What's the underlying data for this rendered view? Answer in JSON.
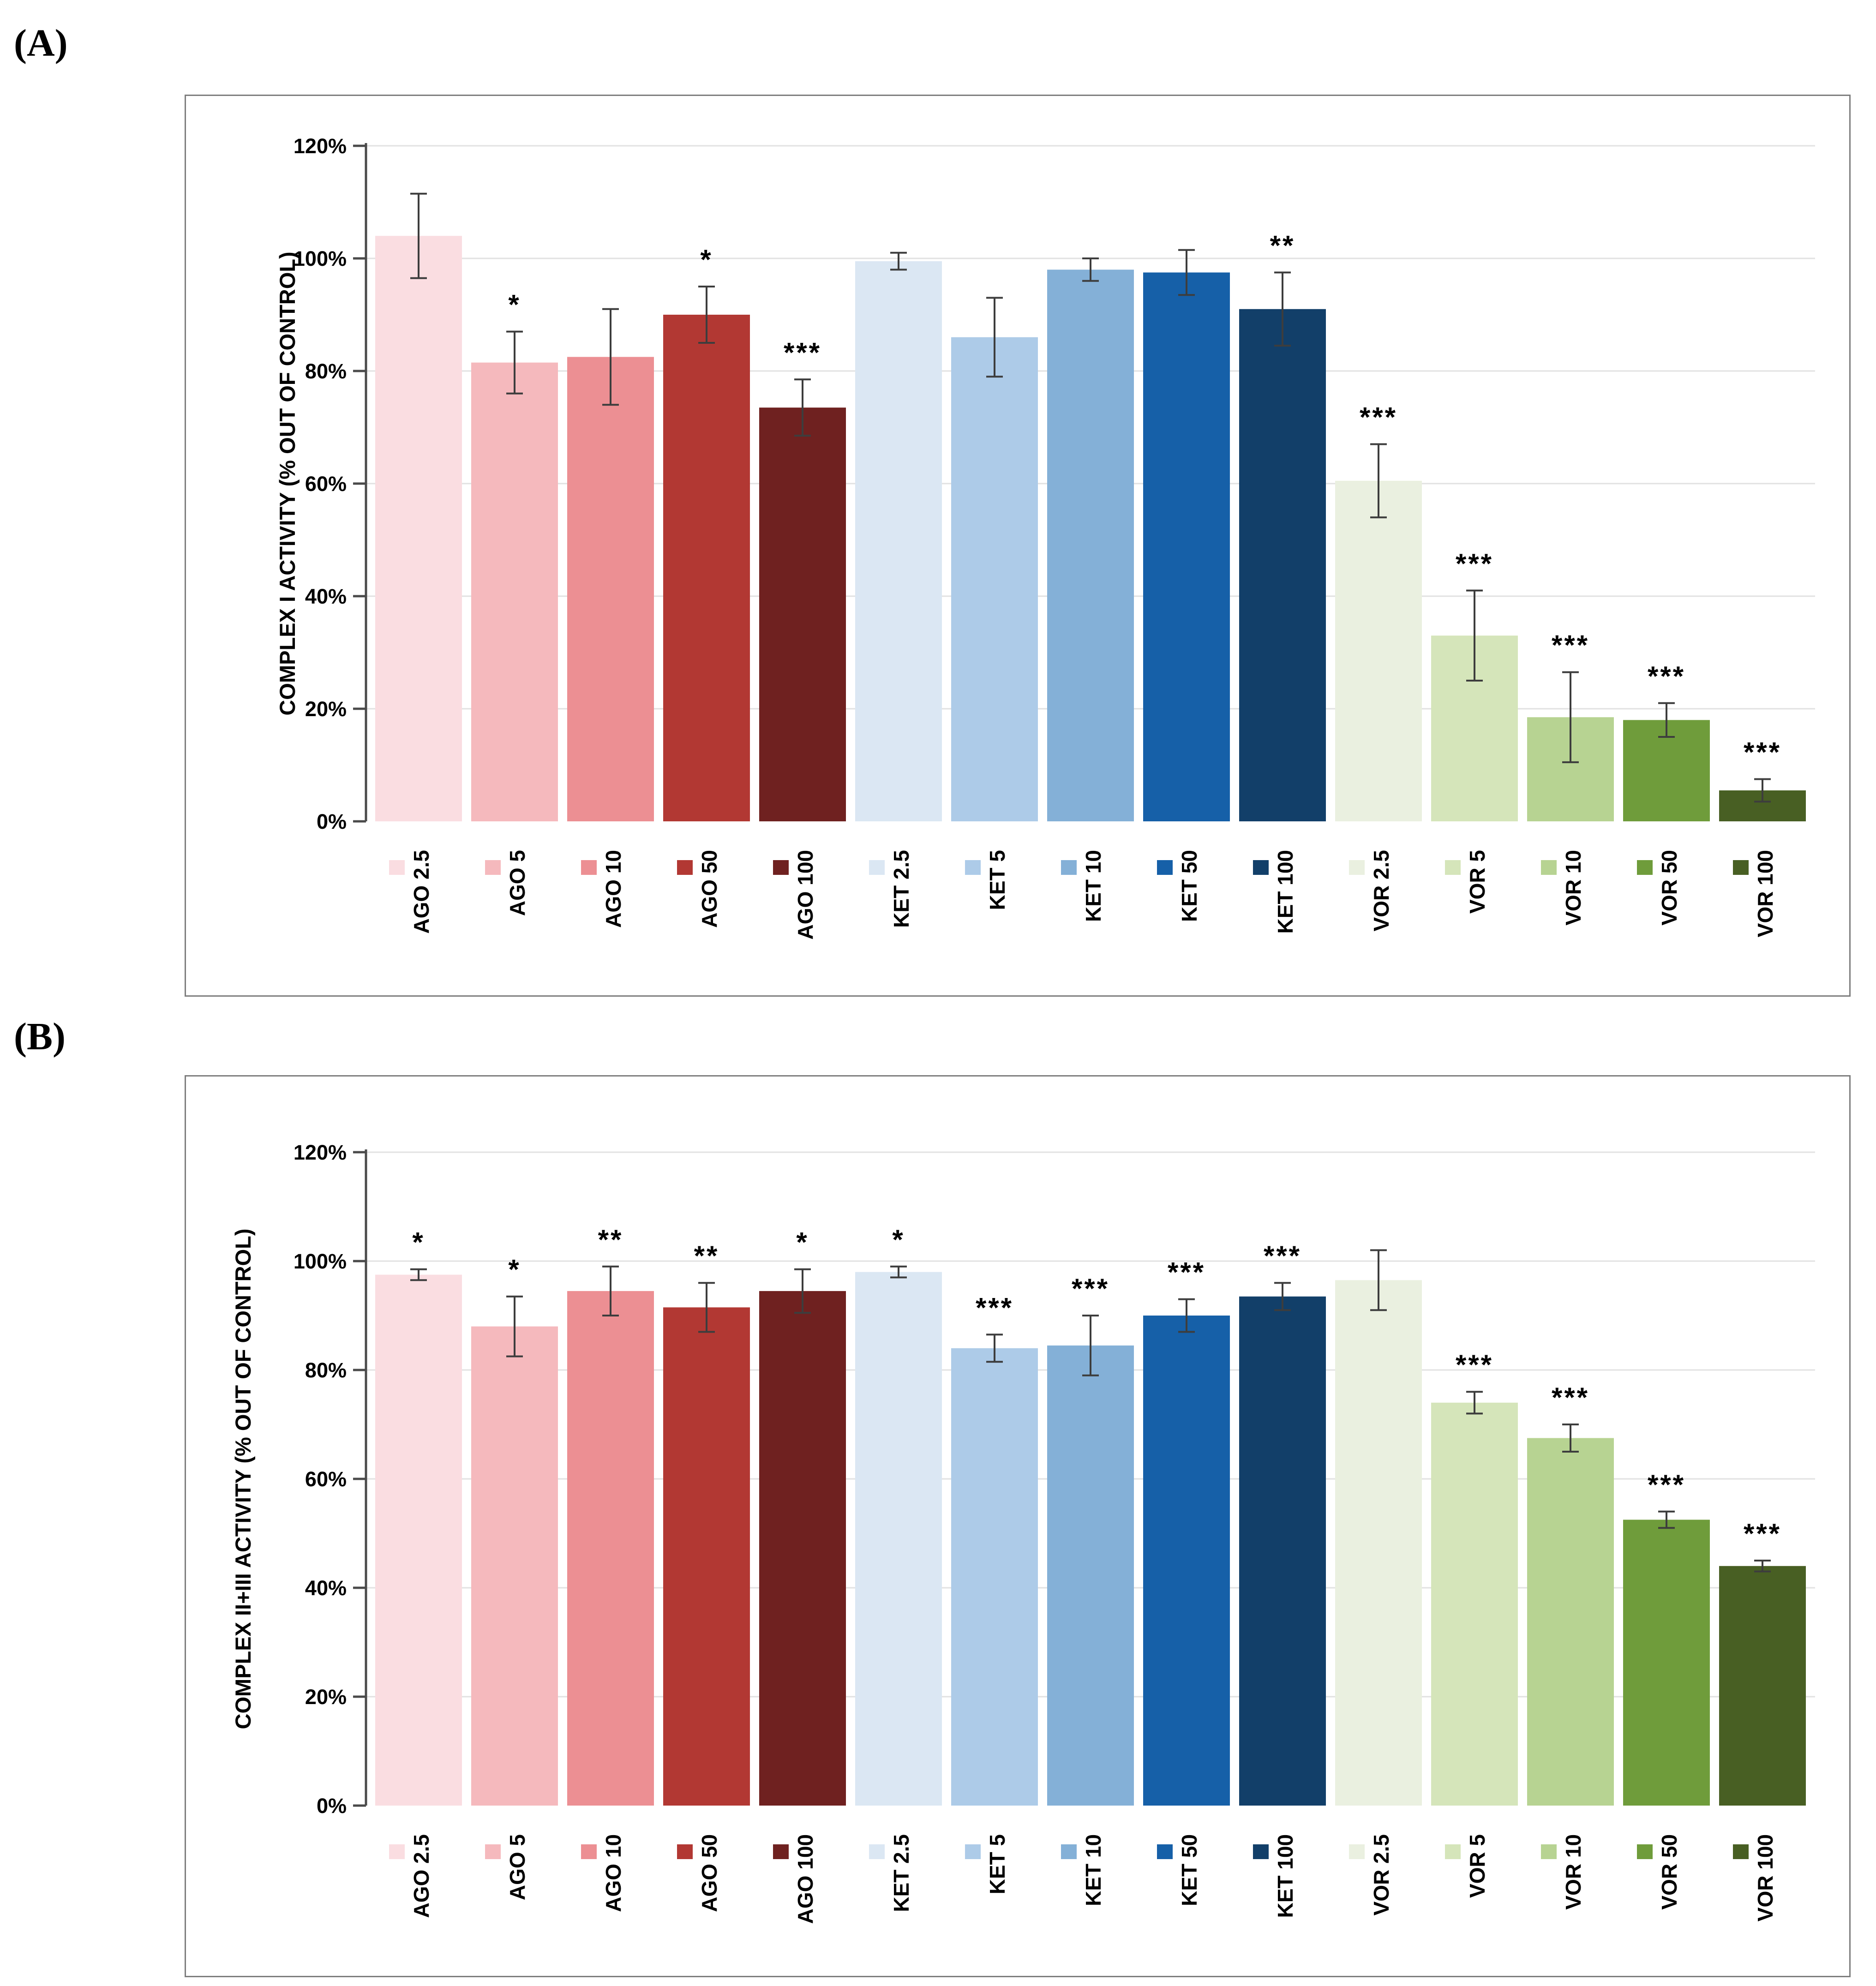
{
  "figure": {
    "background": "#ffffff",
    "border_color": "#7e7e7e",
    "axis_color": "#4a4a4a",
    "grid_color": "#e2e2e2",
    "error_bar_color": "#3d3d3d",
    "text_color": "#000000"
  },
  "chart_data": [
    {
      "type": "bar",
      "panel_label": "(A)",
      "title": "",
      "xlabel": "",
      "ylabel": "COMPLEX I ACTIVITY (% OUT OF CONTROL)",
      "ylim": [
        0,
        120
      ],
      "ytick_step": 20,
      "ytick_labels": [
        "0%",
        "20%",
        "40%",
        "60%",
        "80%",
        "100%",
        "120%"
      ],
      "grid": true,
      "legend_position": "none",
      "categories": [
        "AGO 2.5",
        "AGO 5",
        "AGO 10",
        "AGO 50",
        "AGO 100",
        "KET 2.5",
        "KET 5",
        "KET 10",
        "KET 50",
        "KET 100",
        "VOR 2.5",
        "VOR 5",
        "VOR 10",
        "VOR 50",
        "VOR 100"
      ],
      "values": [
        104,
        81.5,
        82.5,
        90,
        73.5,
        99.5,
        86,
        98,
        97.5,
        91,
        60.5,
        33,
        18.5,
        18,
        5.5
      ],
      "errors": [
        7.5,
        5.5,
        8.5,
        5,
        5,
        1.5,
        7,
        2,
        4,
        6.5,
        6.5,
        8,
        8,
        3,
        2
      ],
      "significance": [
        "",
        "*",
        "",
        "*",
        "***",
        "",
        "",
        "",
        "",
        "**",
        "***",
        "***",
        "***",
        "***",
        "***"
      ],
      "bar_colors": [
        "#fadde1",
        "#f5b9bd",
        "#ec8f93",
        "#b23833",
        "#6f2120",
        "#dbe7f3",
        "#adcbe8",
        "#84b0d7",
        "#1660a8",
        "#123f69",
        "#eaf0e0",
        "#d5e5ba",
        "#b7d392",
        "#6f9c3b",
        "#485f23"
      ]
    },
    {
      "type": "bar",
      "panel_label": "(B)",
      "title": "",
      "xlabel": "",
      "ylabel": "COMPLEX II+III ACTIVITY (% OUT OF CONTROL)",
      "ylim": [
        0,
        120
      ],
      "ytick_step": 20,
      "ytick_labels": [
        "0%",
        "20%",
        "40%",
        "60%",
        "80%",
        "100%",
        "120%"
      ],
      "grid": true,
      "legend_position": "none",
      "categories": [
        "AGO 2.5",
        "AGO 5",
        "AGO 10",
        "AGO 50",
        "AGO 100",
        "KET 2.5",
        "KET 5",
        "KET 10",
        "KET 50",
        "KET 100",
        "VOR 2.5",
        "VOR 5",
        "VOR 10",
        "VOR 50",
        "VOR 100"
      ],
      "values": [
        97.5,
        88,
        94.5,
        91.5,
        94.5,
        98,
        84,
        84.5,
        90,
        93.5,
        96.5,
        74,
        67.5,
        52.5,
        44
      ],
      "errors": [
        1,
        5.5,
        4.5,
        4.5,
        4,
        1,
        2.5,
        5.5,
        3,
        2.5,
        5.5,
        2,
        2.5,
        1.5,
        1
      ],
      "significance": [
        "*",
        "*",
        "**",
        "**",
        "*",
        "*",
        "***",
        "***",
        "***",
        "***",
        "",
        "***",
        "***",
        "***",
        "***"
      ],
      "bar_colors": [
        "#fadde1",
        "#f5b9bd",
        "#ec8f93",
        "#b23833",
        "#6f2120",
        "#dbe7f3",
        "#adcbe8",
        "#84b0d7",
        "#1660a8",
        "#123f69",
        "#eaf0e0",
        "#d5e5ba",
        "#b7d392",
        "#6f9c3b",
        "#485f23"
      ]
    }
  ]
}
